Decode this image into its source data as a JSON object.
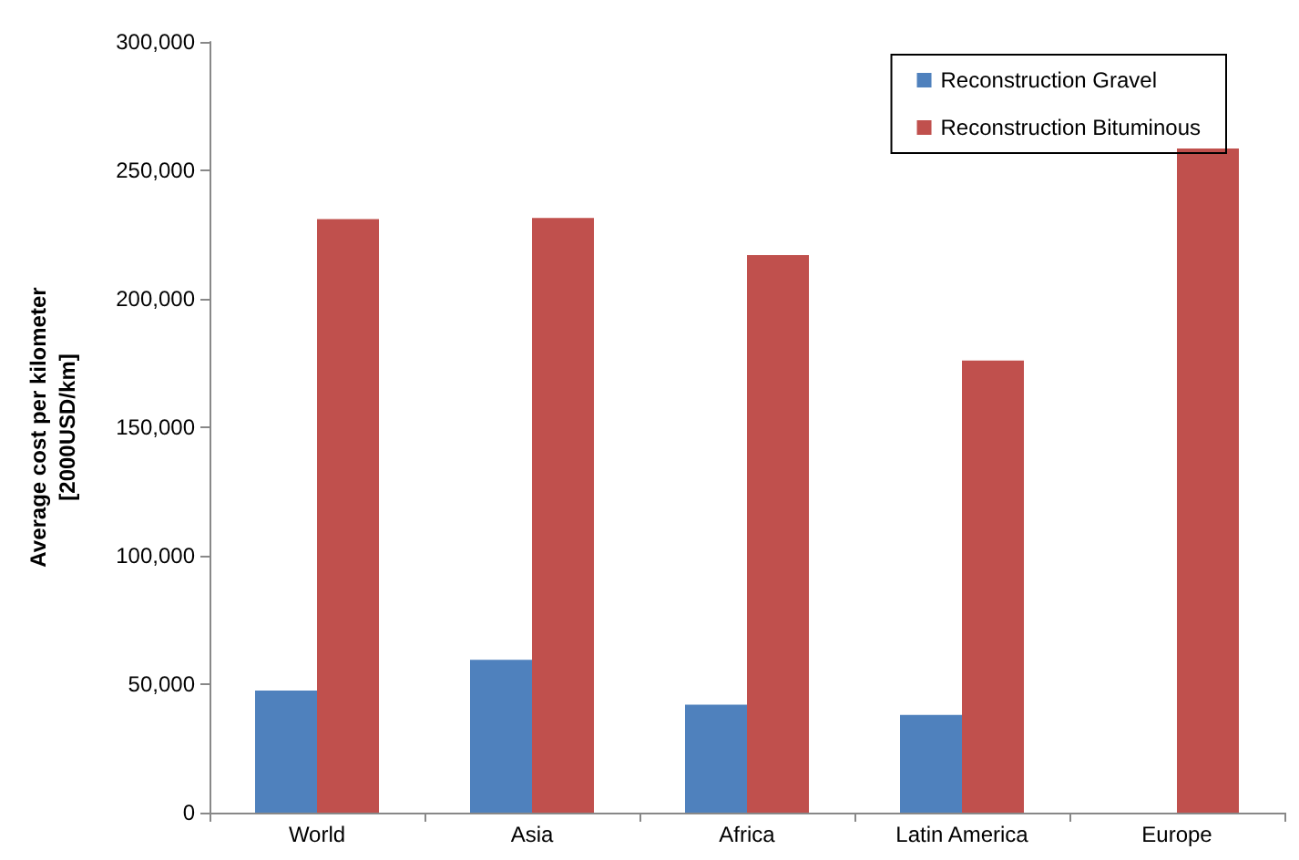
{
  "chart_data": {
    "type": "bar",
    "ylabel": "Average cost per kilometer\n[2000USD/km]",
    "categories": [
      "World",
      "Asia",
      "Africa",
      "Latin America",
      "Europe"
    ],
    "series": [
      {
        "name": "Reconstruction Gravel",
        "color": "#4f81bd",
        "values": [
          47500,
          59500,
          42000,
          38000,
          null
        ]
      },
      {
        "name": "Reconstruction Bituminous",
        "color": "#c0504d",
        "values": [
          231000,
          231500,
          217000,
          176000,
          258500
        ]
      }
    ],
    "ylim": [
      0,
      300000
    ],
    "yticks": [
      0,
      {
        "value": 50000,
        "label": "50,000"
      },
      {
        "value": 100000,
        "label": "100,000"
      },
      {
        "value": 150000,
        "label": "150,000"
      },
      {
        "value": 200000,
        "label": "200,000"
      },
      {
        "value": 250000,
        "label": "250,000"
      },
      {
        "value": 300000,
        "label": "300,000"
      }
    ],
    "grid": false,
    "legend": "top right"
  }
}
